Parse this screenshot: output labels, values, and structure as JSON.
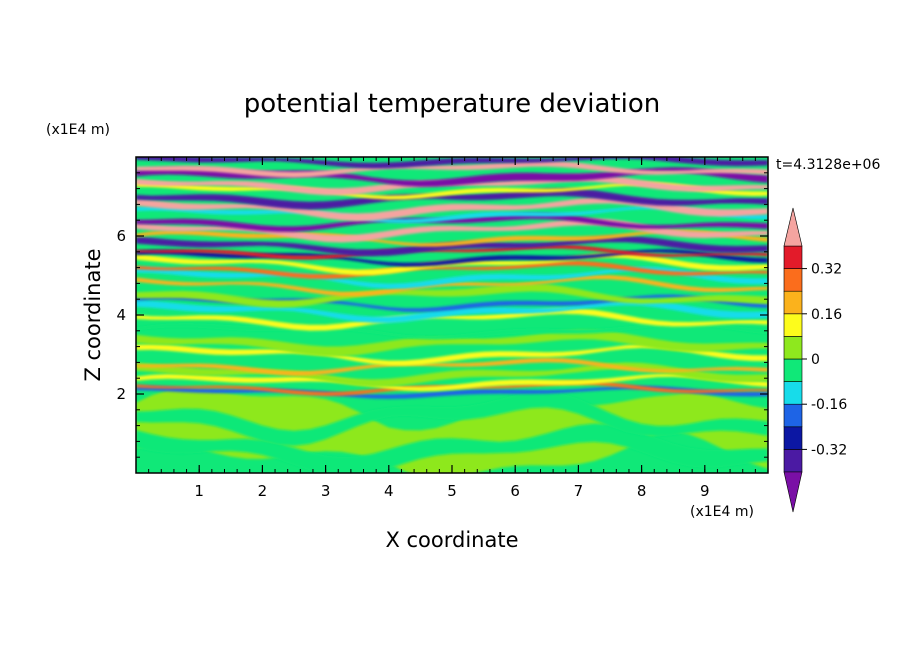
{
  "chart_data": {
    "type": "heatmap",
    "title": "potential temperature deviation",
    "xlabel": "X coordinate",
    "ylabel": "Z coordinate",
    "x_unit": "(x1E4 m)",
    "y_unit": "(x1E4 m)",
    "time_label": "t=4.3128e+06",
    "xlim": [
      0,
      10
    ],
    "ylim": [
      0,
      8
    ],
    "x_ticks": [
      1,
      2,
      3,
      4,
      5,
      6,
      7,
      8,
      9
    ],
    "y_ticks": [
      2,
      4,
      6
    ],
    "colorbar": {
      "levels": [
        -0.4,
        -0.32,
        -0.24,
        -0.16,
        -0.08,
        0,
        0.08,
        0.16,
        0.24,
        0.32,
        0.4
      ],
      "colors": [
        "#7a0fa6",
        "#4b1aa3",
        "#0c17a3",
        "#1e64e6",
        "#17dcea",
        "#10e878",
        "#8ee81e",
        "#fdfc1c",
        "#fbb21c",
        "#fb6d1c",
        "#e31b2a",
        "#f5a4a0"
      ],
      "tick_labels": [
        "0.32",
        "0.16",
        "0",
        "-0.16",
        "-0.32"
      ],
      "tick_values": [
        0.32,
        0.16,
        0,
        -0.16,
        -0.32
      ],
      "extend": "both"
    },
    "grid": false
  }
}
